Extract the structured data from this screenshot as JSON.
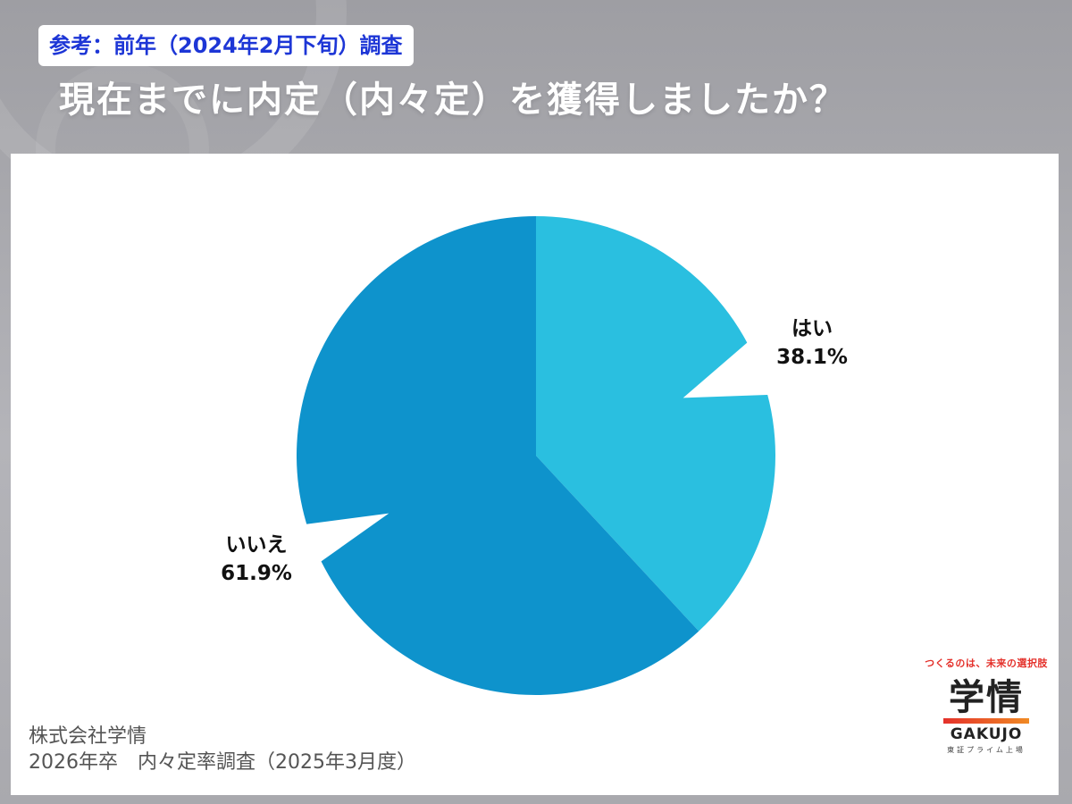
{
  "header": {
    "reference_tag": "参考：前年（2024年2月下旬）調査",
    "question": "現在までに内定（内々定）を獲得しましたか？"
  },
  "chart_data": {
    "type": "pie",
    "title": "現在までに内定（内々定）を獲得しましたか？",
    "slices": [
      {
        "label": "はい",
        "value": 38.1,
        "value_label": "38.1%",
        "color": "#2abfe0"
      },
      {
        "label": "いいえ",
        "value": 61.9,
        "value_label": "61.9%",
        "color": "#0e93cc"
      }
    ],
    "start": "12 o'clock",
    "direction": "clockwise",
    "legend": "none",
    "labels": "outside callout with wedge pointer"
  },
  "footer": {
    "company": "株式会社学情",
    "survey": "2026年卒　内々定率調査（2025年3月度）"
  },
  "logo": {
    "tagline": "つくるのは、未来の選択肢",
    "kanji": "学情",
    "english": "GAKUJO",
    "listing": "東証プライム上場"
  }
}
